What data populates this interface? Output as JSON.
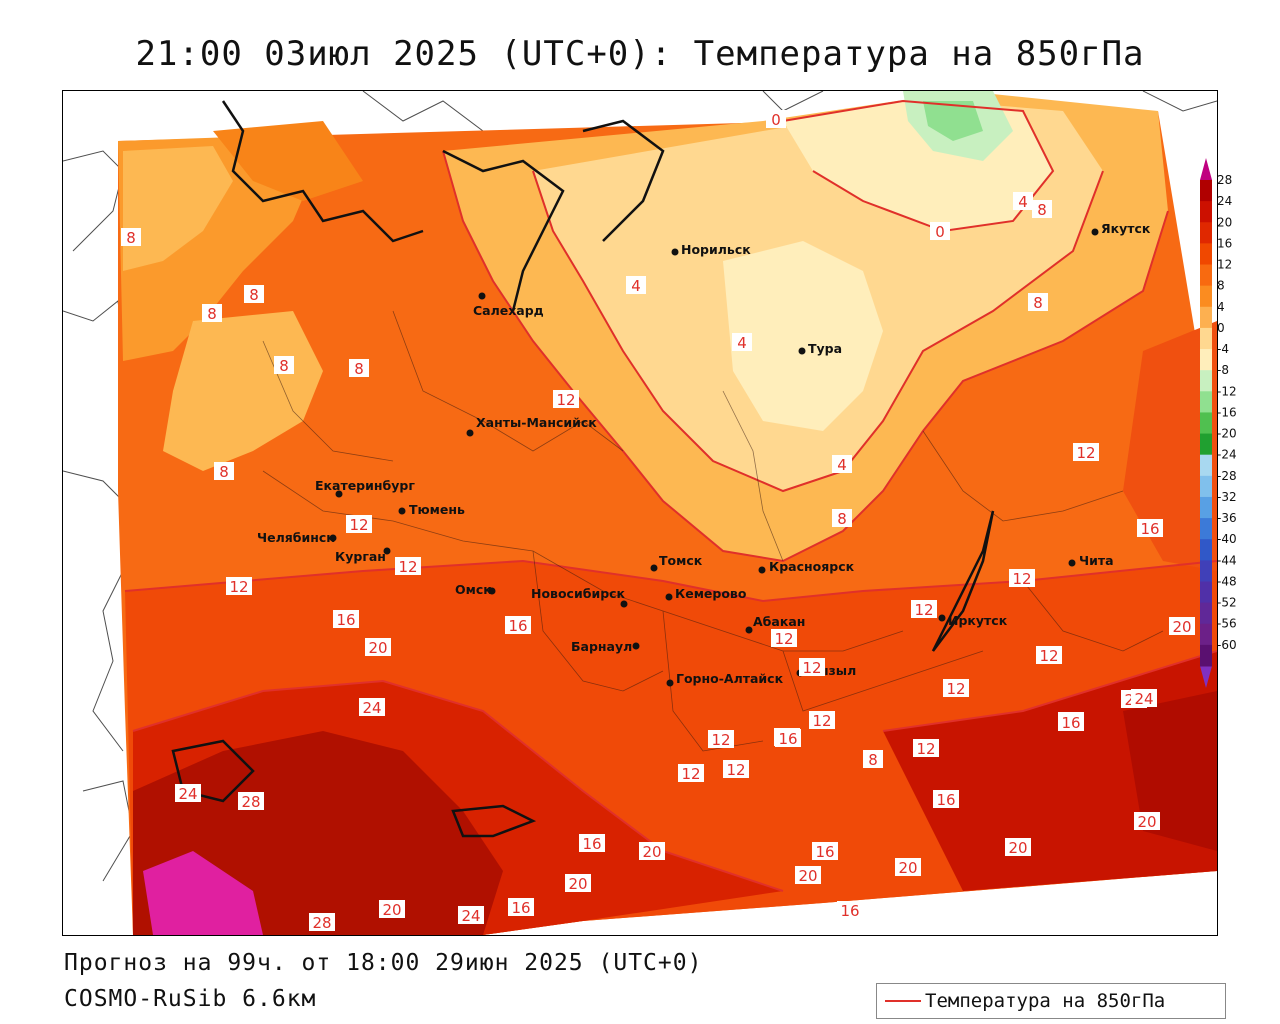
{
  "title": "21:00 03июл 2025 (UTC+0): Температура на 850гПа",
  "forecast_line": "Прогноз на 99ч. от 18:00 29июн 2025 (UTC+0)",
  "model_line": "COSMO-RuSib 6.6км",
  "legend": {
    "label": "Температура на 850гПа",
    "line_color": "#e0302a"
  },
  "colorbar": {
    "ticks": [
      "28",
      "24",
      "20",
      "16",
      "12",
      "8",
      "4",
      "0",
      "-4",
      "-8",
      "-12",
      "-16",
      "-20",
      "-24",
      "-28",
      "-32",
      "-36",
      "-40",
      "-44",
      "-48",
      "-52",
      "-56",
      "-60"
    ],
    "colors": [
      "#b00000",
      "#cc1000",
      "#e02800",
      "#f04800",
      "#f86a10",
      "#fb8c20",
      "#fdb050",
      "#ffd890",
      "#ffeebb",
      "#c8f0c0",
      "#90e090",
      "#50c050",
      "#20a030",
      "#a8d8f0",
      "#80c0ec",
      "#58a0e4",
      "#3c7ad8",
      "#3058c8",
      "#4040b8",
      "#5030a8",
      "#602898",
      "#6c2088",
      "#5a1070"
    ]
  },
  "cities": [
    {
      "name": "Норильск"
    },
    {
      "name": "Якутск"
    },
    {
      "name": "Салехард"
    },
    {
      "name": "Тура"
    },
    {
      "name": "Ханты-Мансийск"
    },
    {
      "name": "Екатеринбург"
    },
    {
      "name": "Тюмень"
    },
    {
      "name": "Челябинск"
    },
    {
      "name": "Курган"
    },
    {
      "name": "Томск"
    },
    {
      "name": "Красноярск"
    },
    {
      "name": "Омск"
    },
    {
      "name": "Новосибирск"
    },
    {
      "name": "Кемерово"
    },
    {
      "name": "Абакан"
    },
    {
      "name": "Иркутск"
    },
    {
      "name": "Чита"
    },
    {
      "name": "Барнаул"
    },
    {
      "name": "Горно-Алтайск"
    },
    {
      "name": "Кызыл"
    }
  ],
  "contour_labels": [
    "0",
    "0",
    "4",
    "8",
    "8",
    "8",
    "8",
    "8",
    "8",
    "4",
    "4",
    "4",
    "8",
    "8",
    "8",
    "12",
    "12",
    "12",
    "12",
    "12",
    "12",
    "12",
    "16",
    "16",
    "20",
    "24",
    "24",
    "28",
    "28",
    "20",
    "24",
    "16",
    "12",
    "16",
    "12",
    "12",
    "12",
    "12",
    "16",
    "12",
    "12",
    "16",
    "12",
    "20",
    "24",
    "16",
    "16",
    "16",
    "20",
    "20",
    "16",
    "16",
    "20",
    "20",
    "20",
    "24",
    "16",
    "8",
    "12",
    "20"
  ]
}
